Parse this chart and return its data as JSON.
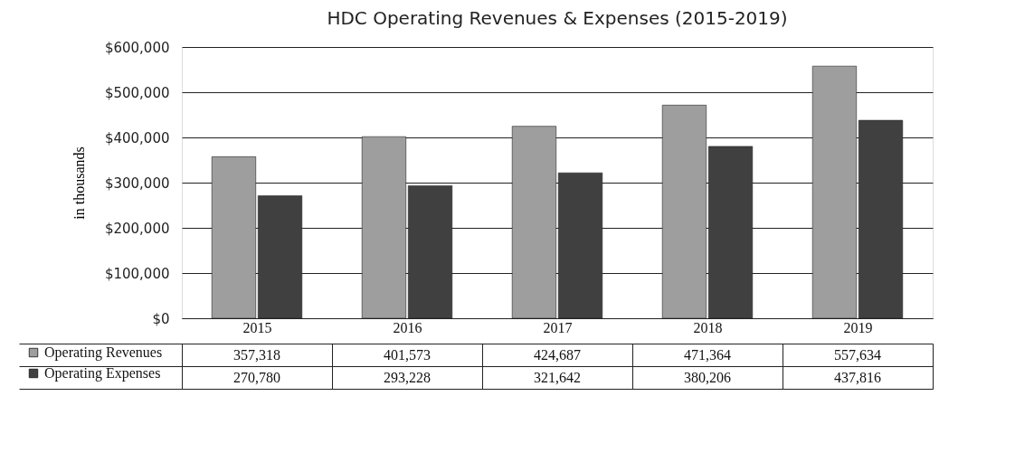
{
  "chart_data": {
    "type": "bar",
    "title": "HDC Operating Revenues & Expenses (2015-2019)",
    "ylabel": "in thousands",
    "categories": [
      "2015",
      "2016",
      "2017",
      "2018",
      "2019"
    ],
    "series": [
      {
        "name": "Operating Revenues",
        "color": "#9e9e9e",
        "values": [
          357318,
          401573,
          424687,
          471364,
          557634
        ]
      },
      {
        "name": "Operating Expenses",
        "color": "#404040",
        "values": [
          270780,
          293228,
          321642,
          380206,
          437816
        ]
      }
    ],
    "ylim": [
      0,
      600000
    ],
    "yticks": [
      {
        "value": 0,
        "label": "$0"
      },
      {
        "value": 100000,
        "label": "$100,000"
      },
      {
        "value": 200000,
        "label": "$200,000"
      },
      {
        "value": 300000,
        "label": "$300,000"
      },
      {
        "value": 400000,
        "label": "$400,000"
      },
      {
        "value": 500000,
        "label": "$500,000"
      },
      {
        "value": 600000,
        "label": "$600,000"
      }
    ],
    "value_labels": [
      [
        "357,318",
        "401,573",
        "424,687",
        "471,364",
        "557,634"
      ],
      [
        "270,780",
        "293,228",
        "321,642",
        "380,206",
        "437,816"
      ]
    ],
    "grid": "y",
    "legend": "bottom"
  }
}
